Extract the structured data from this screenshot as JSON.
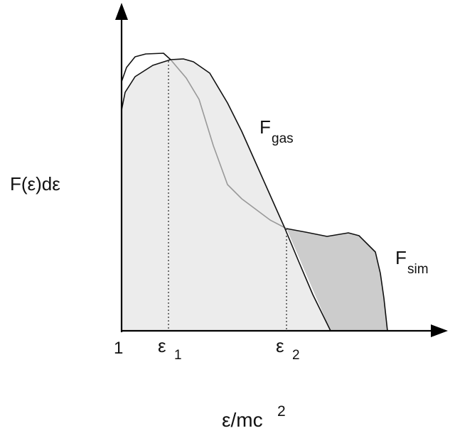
{
  "diagram": {
    "y_axis_label": "F(ε)dε",
    "x_axis_label": {
      "base": "ε/mc",
      "superscript": "2"
    },
    "ticks": {
      "origin": "1",
      "epsilon1": {
        "base": "ε",
        "subscript": "1"
      },
      "epsilon2": {
        "base": "ε",
        "subscript": "2"
      }
    },
    "curves": {
      "gas": {
        "base": "F",
        "subscript": "gas"
      },
      "sim": {
        "base": "F",
        "subscript": "sim"
      }
    },
    "colors": {
      "region_light": "#ececec",
      "region_dark": "#cccccc",
      "curve_outline": "#111111",
      "sim_inner_curve": "#999999",
      "axis": "#000000"
    }
  }
}
